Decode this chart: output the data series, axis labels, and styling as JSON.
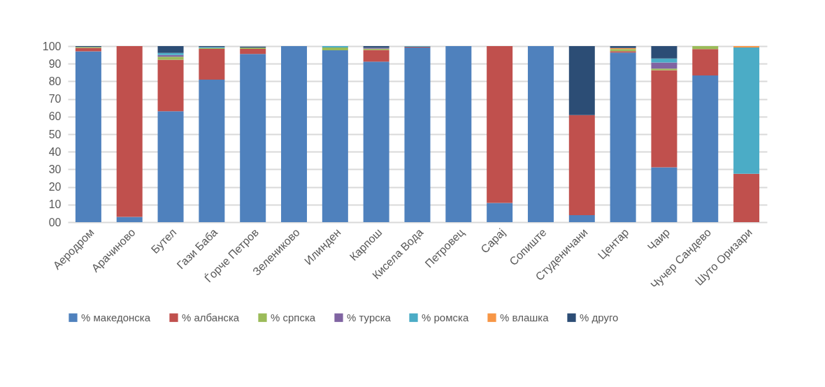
{
  "chart_data": {
    "type": "bar",
    "stacked": true,
    "categories": [
      "Аеродром",
      "Арачиново",
      "Бутел",
      "Гази Баба",
      "Ѓорче Петров",
      "Зелениково",
      "Илинден",
      "Карпош",
      "Кисела Вода",
      "Петровец",
      "Сарај",
      "Сопиште",
      "Студеничани",
      "Центар",
      "Чаир",
      "Чучер Сандево",
      "Шуто Оризари"
    ],
    "series": [
      {
        "name": "% македонска",
        "color": "#4f81bd",
        "values": [
          97,
          3,
          63,
          81,
          95.5,
          100,
          97.6,
          91.2,
          99.2,
          100,
          10.9,
          100,
          4,
          96.3,
          31.2,
          83.3,
          0
        ]
      },
      {
        "name": "% албанска",
        "color": "#c0504d",
        "values": [
          2,
          97,
          29.3,
          17.4,
          2.9,
          0,
          0,
          6.6,
          0.4,
          0,
          89.1,
          0,
          56.8,
          0.8,
          55.1,
          15,
          27.5
        ]
      },
      {
        "name": " % српска",
        "color": "#9bbb59",
        "values": [
          0.5,
          0,
          1.6,
          0.5,
          0.7,
          0,
          1.6,
          0.7,
          0,
          0,
          0,
          0,
          0,
          1.2,
          0.9,
          1.7,
          0
        ]
      },
      {
        "name": "% турска",
        "color": "#8064a2",
        "values": [
          0,
          0,
          1,
          0,
          null,
          0,
          0,
          0.5,
          0,
          0,
          0,
          0,
          0,
          0,
          3.5,
          0,
          0
        ]
      },
      {
        "name": "% ромска",
        "color": "#4bacc6",
        "values": [
          0,
          0,
          1.2,
          0.5,
          0,
          0,
          0.8,
          0,
          0.4,
          0,
          0,
          0,
          0,
          0,
          2.3,
          0,
          71.7
        ]
      },
      {
        "name": "% влашка",
        "color": "#f79646",
        "values": [
          0,
          0,
          0,
          0,
          0,
          0,
          0,
          0,
          0,
          0,
          0,
          0,
          0,
          0.6,
          0,
          0,
          0.8
        ]
      },
      {
        "name": "% друго",
        "color": "#2c4d75",
        "values": [
          0.5,
          0,
          3.9,
          0.6,
          0.6,
          0,
          0,
          1,
          0,
          0,
          0,
          0,
          39.2,
          1.1,
          7,
          0,
          0
        ]
      }
    ],
    "ylim": [
      0,
      100
    ],
    "yticks": [
      {
        "value": 0,
        "label": "00"
      },
      10,
      20,
      30,
      40,
      50,
      60,
      70,
      80,
      90,
      100
    ],
    "grid": "y",
    "legend": "bottom"
  }
}
